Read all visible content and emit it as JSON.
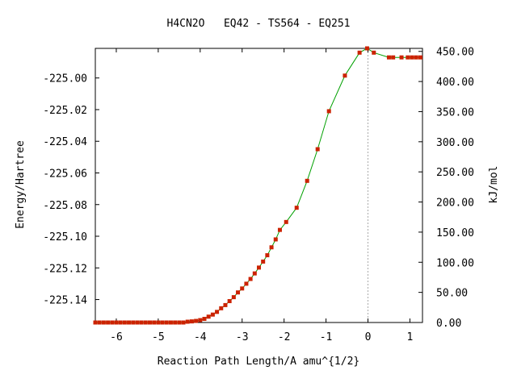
{
  "chart_data": {
    "type": "line",
    "title": "H4CN2O   EQ42 - TS564 - EQ251",
    "xlabel": "Reaction Path Length/A amu^{1/2}",
    "ylabel": "Energy/Hartree",
    "y2label": "kJ/mol",
    "xlim": [
      -6.5,
      1.3
    ],
    "ylim": [
      -225.1545,
      -224.9813
    ],
    "y2lim": [
      0.0,
      455.0
    ],
    "xticks": [
      -6,
      -5,
      -4,
      -3,
      -2,
      -1,
      0,
      1
    ],
    "xtick_labels": [
      "-6",
      "-5",
      "-4",
      "-3",
      "-2",
      "-1",
      "0",
      "1"
    ],
    "yticks": [
      -225.0,
      -225.02,
      -225.04,
      -225.06,
      -225.08,
      -225.1,
      -225.12,
      -225.14
    ],
    "ytick_labels": [
      "-225.00",
      "-225.02",
      "-225.04",
      "-225.06",
      "-225.08",
      "-225.10",
      "-225.12",
      "-225.14"
    ],
    "y2ticks": [
      450,
      400,
      350,
      300,
      250,
      200,
      150,
      100,
      50,
      0
    ],
    "y2tick_labels": [
      "450.00",
      "400.00",
      "350.00",
      "300.00",
      "250.00",
      "200.00",
      "150.00",
      "100.00",
      "50.00",
      "0.00"
    ],
    "ts_marker_x": 0.0,
    "grid": false,
    "colors": {
      "line": "#00a000",
      "points": "#cc2200",
      "ts_line": "#aaaaaa",
      "axes": "#000000"
    },
    "series": [
      {
        "x": [
          -6.5,
          -6.4,
          -6.3,
          -6.2,
          -6.1,
          -6.0,
          -5.9,
          -5.8,
          -5.7,
          -5.6,
          -5.5,
          -5.4,
          -5.3,
          -5.2,
          -5.1,
          -5.0,
          -4.9,
          -4.8,
          -4.7,
          -4.6,
          -4.5,
          -4.4,
          -4.3,
          -4.2,
          -4.1,
          -4.0,
          -3.9,
          -3.8,
          -3.7,
          -3.6,
          -3.5,
          -3.4,
          -3.3,
          -3.2,
          -3.1,
          -3.0,
          -2.9,
          -2.8,
          -2.7,
          -2.6,
          -2.5,
          -2.4,
          -2.3,
          -2.2,
          -2.1,
          -1.95,
          -1.7,
          -1.45,
          -1.2,
          -0.93,
          -0.55,
          -0.2,
          -0.02,
          0.14,
          0.5,
          0.6,
          0.8,
          0.95,
          1.05,
          1.15,
          1.25
        ],
        "y": [
          -225.1545,
          -225.1545,
          -225.1545,
          -225.1545,
          -225.1545,
          -225.1545,
          -225.1545,
          -225.1545,
          -225.1545,
          -225.1545,
          -225.1545,
          -225.1545,
          -225.1545,
          -225.1545,
          -225.1545,
          -225.1545,
          -225.1545,
          -225.1545,
          -225.1545,
          -225.1545,
          -225.1545,
          -225.1545,
          -225.154,
          -225.1538,
          -225.1535,
          -225.153,
          -225.1522,
          -225.1508,
          -225.1495,
          -225.1478,
          -225.1455,
          -225.1435,
          -225.141,
          -225.1385,
          -225.1355,
          -225.133,
          -225.13,
          -225.127,
          -225.1235,
          -225.1198,
          -225.116,
          -225.112,
          -225.107,
          -225.102,
          -225.096,
          -225.091,
          -225.082,
          -225.065,
          -225.045,
          -225.021,
          -224.9985,
          -224.984,
          -224.9813,
          -224.984,
          -224.987,
          -224.987,
          -224.987,
          -224.987,
          -224.987,
          -224.987,
          -224.987
        ]
      }
    ]
  }
}
